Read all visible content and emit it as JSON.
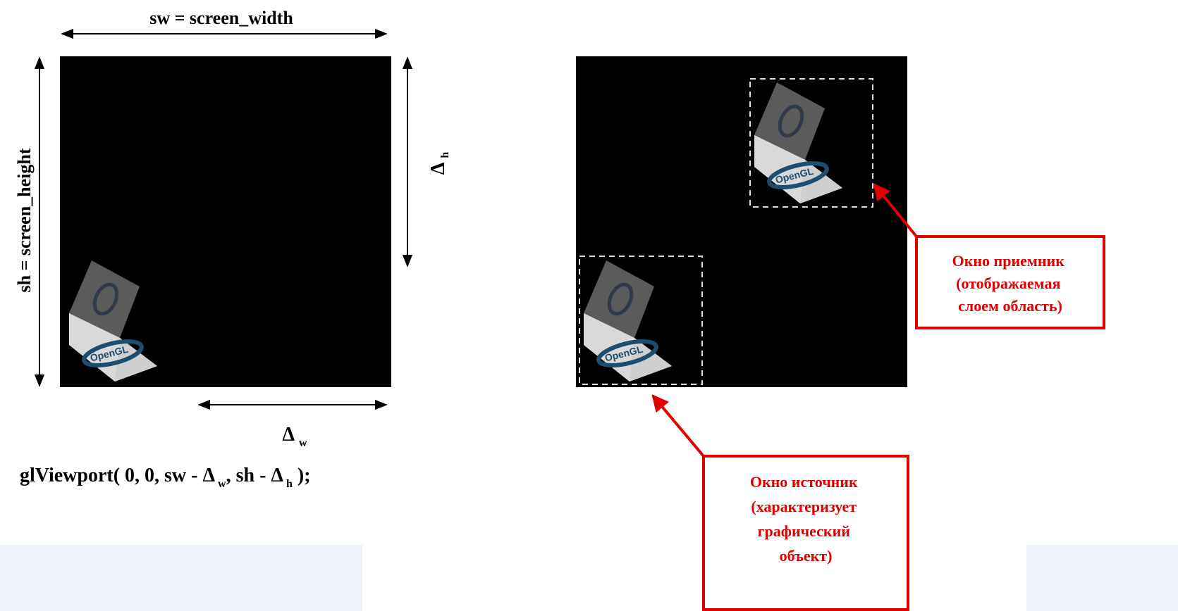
{
  "left_diagram": {
    "width_label": "sw = screen_width",
    "height_label": "sh = screen_height",
    "delta_symbol": "Δ",
    "delta_h_sub": "h",
    "delta_w_sub": "w",
    "cube_logo_text": "OpenGL"
  },
  "code": {
    "prefix": "glViewport( 0, 0, sw - ",
    "delta": "Δ",
    "sub_w": "w",
    "middle": ", sh - ",
    "sub_h": "h",
    "suffix": " );"
  },
  "right_diagram": {
    "cube_logo_text": "OpenGL",
    "receiver_callout": [
      "Окно приемник",
      "(отображаемая",
      "слоем область)"
    ],
    "source_callout": [
      "Окно источник",
      "(характеризует",
      "графический",
      "объект)"
    ]
  },
  "colors": {
    "canvas": "#000000",
    "callout": "#e00000",
    "dashed_frame": "#dddddd",
    "band": "#f1f4fb"
  }
}
